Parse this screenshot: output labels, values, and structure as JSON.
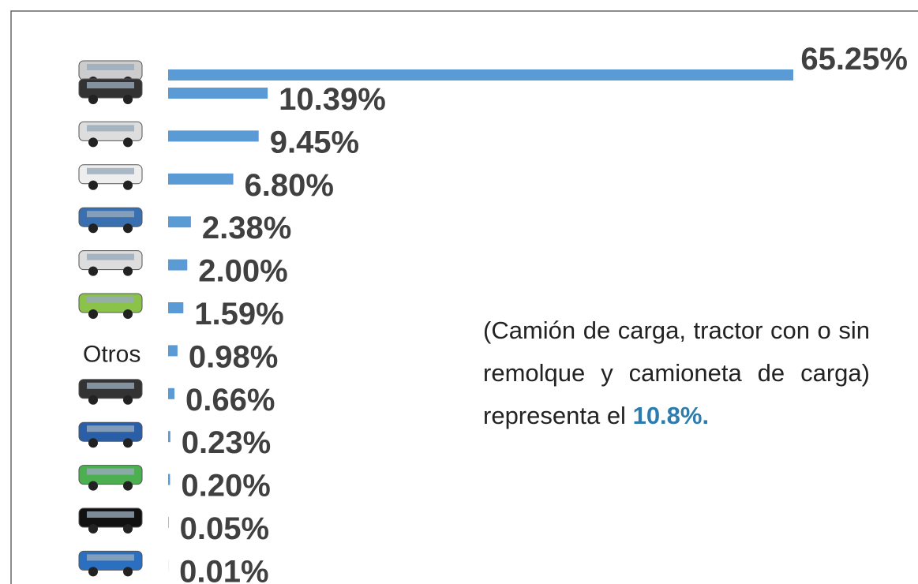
{
  "chart_data": {
    "type": "bar",
    "orientation": "horizontal",
    "categories": [
      null,
      null,
      null,
      null,
      null,
      null,
      null,
      "Otros",
      null,
      null,
      null,
      null,
      null
    ],
    "values": [
      65.25,
      10.39,
      9.45,
      6.8,
      2.38,
      2.0,
      1.59,
      0.98,
      0.66,
      0.23,
      0.2,
      0.05,
      0.01
    ],
    "value_labels": [
      "65.25%",
      "10.39%",
      "9.45%",
      "6.80%",
      "2.38%",
      "2.00%",
      "1.59%",
      "0.98%",
      "0.66%",
      "0.23%",
      "0.20%",
      "0.05%",
      "0.01%"
    ],
    "color": "#5b9bd5",
    "annotation": "(Camión de carga, tractor con o sin remolque y camioneta de carga) representa el",
    "annotation_highlight": "10.8%."
  }
}
